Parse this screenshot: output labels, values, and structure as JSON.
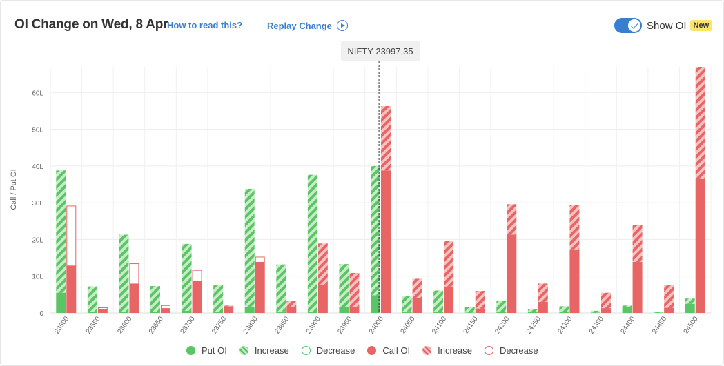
{
  "header": {
    "title": "OI Change on Wed, 8 Apr",
    "how_to_read": "How to read this?",
    "replay_label": "Replay Change",
    "show_oi_label": "Show OI",
    "new_badge": "New",
    "show_oi_on": true
  },
  "spot_label": "NIFTY 23997.35",
  "colors": {
    "put": "#5bc465",
    "put_light": "#c6ecc8",
    "call": "#e86566",
    "call_light": "#f6c2c2",
    "accent": "#387ed1"
  },
  "legend": [
    {
      "key": "put",
      "label": "Put OI"
    },
    {
      "key": "putinc",
      "label": "Increase"
    },
    {
      "key": "putdec",
      "label": "Decrease"
    },
    {
      "key": "call",
      "label": "Call OI"
    },
    {
      "key": "callinc",
      "label": "Increase"
    },
    {
      "key": "calldec",
      "label": "Decrease"
    }
  ],
  "chart_data": {
    "type": "bar",
    "ylabel": "Call / Put OI",
    "ylim": [
      0,
      67
    ],
    "yticks": [
      0,
      10,
      20,
      30,
      40,
      50,
      60
    ],
    "ytick_labels": [
      "0",
      "10L",
      "20L",
      "30L",
      "40L",
      "50L",
      "60L"
    ],
    "unit": "L",
    "spot": 23997.35,
    "categories": [
      "23500",
      "23550",
      "23600",
      "23650",
      "23700",
      "23750",
      "23800",
      "23850",
      "23900",
      "23950",
      "24000",
      "24050",
      "24100",
      "24150",
      "24200",
      "24250",
      "24300",
      "24350",
      "24400",
      "24450",
      "24500"
    ],
    "put_base": [
      5.5,
      0.3,
      0.3,
      0.2,
      0.6,
      0.2,
      1.7,
      0.4,
      0.2,
      1.5,
      4.8,
      0.4,
      0.3,
      0.1,
      0.3,
      0.2,
      0.2,
      0.1,
      1.5,
      0.1,
      2.5
    ],
    "put_change": [
      33.3,
      6.9,
      21.0,
      7.1,
      18.2,
      7.3,
      32.1,
      12.8,
      37.4,
      11.8,
      35.2,
      4.2,
      5.8,
      1.4,
      3.1,
      0.9,
      1.6,
      0.5,
      0.5,
      0.2,
      1.4
    ],
    "call_base": [
      12.8,
      1.0,
      7.9,
      1.2,
      8.6,
      1.8,
      13.8,
      1.6,
      7.7,
      1.7,
      38.8,
      4.1,
      7.2,
      1.2,
      21.3,
      3.0,
      17.3,
      1.3,
      13.9,
      1.4,
      36.6
    ],
    "call_change": [
      16.4,
      0.5,
      5.6,
      0.9,
      3.1,
      0.2,
      1.5,
      1.7,
      11.2,
      9.2,
      17.5,
      5.2,
      12.5,
      4.8,
      8.3,
      5.0,
      12.0,
      4.2,
      10.0,
      6.3,
      30.4
    ],
    "call_change_type": [
      "decrease",
      "decrease",
      "decrease",
      "decrease",
      "decrease",
      "increase",
      "decrease",
      "increase",
      "increase",
      "increase",
      "increase",
      "increase",
      "increase",
      "increase",
      "increase",
      "increase",
      "increase",
      "increase",
      "increase",
      "increase",
      "increase"
    ]
  }
}
